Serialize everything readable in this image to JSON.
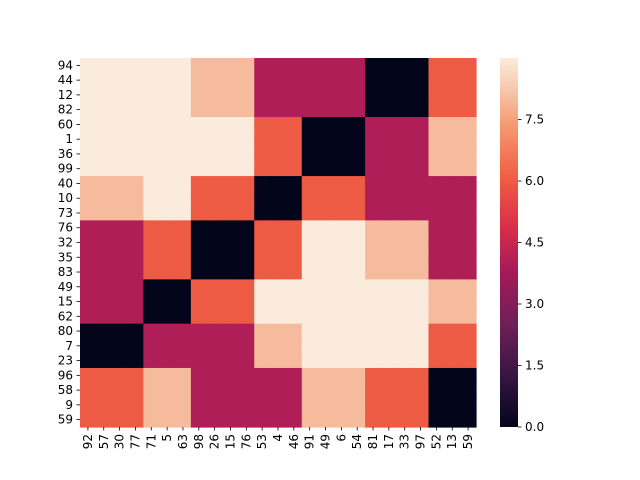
{
  "chart_data": {
    "type": "heatmap",
    "title": "",
    "xlabel": "",
    "ylabel": "",
    "row_labels": [
      "94",
      "44",
      "12",
      "82",
      "60",
      "1",
      "36",
      "99",
      "40",
      "10",
      "73",
      "76",
      "32",
      "35",
      "83",
      "49",
      "15",
      "62",
      "80",
      "7",
      "23",
      "96",
      "58",
      "9",
      "59"
    ],
    "col_labels": [
      "92",
      "57",
      "30",
      "77",
      "71",
      "5",
      "63",
      "98",
      "26",
      "15",
      "76",
      "53",
      "4",
      "46",
      "91",
      "49",
      "6",
      "54",
      "81",
      "17",
      "33",
      "97",
      "52",
      "13",
      "59"
    ],
    "cmap": "rocket",
    "vmin": 0,
    "vmax": 9,
    "colorbar_ticks": [
      "0.0",
      "1.5",
      "3.0",
      "4.5",
      "6.0",
      "7.5"
    ],
    "colorbar_tick_values": [
      0,
      1.5,
      3,
      4.5,
      6,
      7.5
    ],
    "values": [
      [
        9,
        9,
        9,
        9,
        9,
        9,
        9,
        8,
        8,
        8,
        8,
        4,
        4,
        4,
        4,
        4,
        4,
        4,
        0,
        0,
        0,
        0,
        6,
        6,
        6
      ],
      [
        9,
        9,
        9,
        9,
        9,
        9,
        9,
        8,
        8,
        8,
        8,
        4,
        4,
        4,
        4,
        4,
        4,
        4,
        0,
        0,
        0,
        0,
        6,
        6,
        6
      ],
      [
        9,
        9,
        9,
        9,
        9,
        9,
        9,
        8,
        8,
        8,
        8,
        4,
        4,
        4,
        4,
        4,
        4,
        4,
        0,
        0,
        0,
        0,
        6,
        6,
        6
      ],
      [
        9,
        9,
        9,
        9,
        9,
        9,
        9,
        8,
        8,
        8,
        8,
        4,
        4,
        4,
        4,
        4,
        4,
        4,
        0,
        0,
        0,
        0,
        6,
        6,
        6
      ],
      [
        9,
        9,
        9,
        9,
        9,
        9,
        9,
        9,
        9,
        9,
        9,
        6,
        6,
        6,
        0,
        0,
        0,
        0,
        4,
        4,
        4,
        4,
        8,
        8,
        8
      ],
      [
        9,
        9,
        9,
        9,
        9,
        9,
        9,
        9,
        9,
        9,
        9,
        6,
        6,
        6,
        0,
        0,
        0,
        0,
        4,
        4,
        4,
        4,
        8,
        8,
        8
      ],
      [
        9,
        9,
        9,
        9,
        9,
        9,
        9,
        9,
        9,
        9,
        9,
        6,
        6,
        6,
        0,
        0,
        0,
        0,
        4,
        4,
        4,
        4,
        8,
        8,
        8
      ],
      [
        9,
        9,
        9,
        9,
        9,
        9,
        9,
        9,
        9,
        9,
        9,
        6,
        6,
        6,
        0,
        0,
        0,
        0,
        4,
        4,
        4,
        4,
        8,
        8,
        8
      ],
      [
        8,
        8,
        8,
        8,
        9,
        9,
        9,
        6,
        6,
        6,
        6,
        0,
        0,
        0,
        6,
        6,
        6,
        6,
        4,
        4,
        4,
        4,
        4,
        4,
        4
      ],
      [
        8,
        8,
        8,
        8,
        9,
        9,
        9,
        6,
        6,
        6,
        6,
        0,
        0,
        0,
        6,
        6,
        6,
        6,
        4,
        4,
        4,
        4,
        4,
        4,
        4
      ],
      [
        8,
        8,
        8,
        8,
        9,
        9,
        9,
        6,
        6,
        6,
        6,
        0,
        0,
        0,
        6,
        6,
        6,
        6,
        4,
        4,
        4,
        4,
        4,
        4,
        4
      ],
      [
        4,
        4,
        4,
        4,
        6,
        6,
        6,
        0,
        0,
        0,
        0,
        6,
        6,
        6,
        9,
        9,
        9,
        9,
        8,
        8,
        8,
        8,
        4,
        4,
        4
      ],
      [
        4,
        4,
        4,
        4,
        6,
        6,
        6,
        0,
        0,
        0,
        0,
        6,
        6,
        6,
        9,
        9,
        9,
        9,
        8,
        8,
        8,
        8,
        4,
        4,
        4
      ],
      [
        4,
        4,
        4,
        4,
        6,
        6,
        6,
        0,
        0,
        0,
        0,
        6,
        6,
        6,
        9,
        9,
        9,
        9,
        8,
        8,
        8,
        8,
        4,
        4,
        4
      ],
      [
        4,
        4,
        4,
        4,
        6,
        6,
        6,
        0,
        0,
        0,
        0,
        6,
        6,
        6,
        9,
        9,
        9,
        9,
        8,
        8,
        8,
        8,
        4,
        4,
        4
      ],
      [
        4,
        4,
        4,
        4,
        0,
        0,
        0,
        6,
        6,
        6,
        6,
        9,
        9,
        9,
        9,
        9,
        9,
        9,
        9,
        9,
        9,
        9,
        8,
        8,
        8
      ],
      [
        4,
        4,
        4,
        4,
        0,
        0,
        0,
        6,
        6,
        6,
        6,
        9,
        9,
        9,
        9,
        9,
        9,
        9,
        9,
        9,
        9,
        9,
        8,
        8,
        8
      ],
      [
        4,
        4,
        4,
        4,
        0,
        0,
        0,
        6,
        6,
        6,
        6,
        9,
        9,
        9,
        9,
        9,
        9,
        9,
        9,
        9,
        9,
        9,
        8,
        8,
        8
      ],
      [
        0,
        0,
        0,
        0,
        4,
        4,
        4,
        4,
        4,
        4,
        4,
        8,
        8,
        8,
        9,
        9,
        9,
        9,
        9,
        9,
        9,
        9,
        6,
        6,
        6
      ],
      [
        0,
        0,
        0,
        0,
        4,
        4,
        4,
        4,
        4,
        4,
        4,
        8,
        8,
        8,
        9,
        9,
        9,
        9,
        9,
        9,
        9,
        9,
        6,
        6,
        6
      ],
      [
        0,
        0,
        0,
        0,
        4,
        4,
        4,
        4,
        4,
        4,
        4,
        8,
        8,
        8,
        9,
        9,
        9,
        9,
        9,
        9,
        9,
        9,
        6,
        6,
        6
      ],
      [
        6,
        6,
        6,
        6,
        8,
        8,
        8,
        4,
        4,
        4,
        4,
        4,
        4,
        4,
        8,
        8,
        8,
        8,
        6,
        6,
        6,
        6,
        0,
        0,
        0
      ],
      [
        6,
        6,
        6,
        6,
        8,
        8,
        8,
        4,
        4,
        4,
        4,
        4,
        4,
        4,
        8,
        8,
        8,
        8,
        6,
        6,
        6,
        6,
        0,
        0,
        0
      ],
      [
        6,
        6,
        6,
        6,
        8,
        8,
        8,
        4,
        4,
        4,
        4,
        4,
        4,
        4,
        8,
        8,
        8,
        8,
        6,
        6,
        6,
        6,
        0,
        0,
        0
      ],
      [
        6,
        6,
        6,
        6,
        8,
        8,
        8,
        4,
        4,
        4,
        4,
        4,
        4,
        4,
        8,
        8,
        8,
        8,
        6,
        6,
        6,
        6,
        0,
        0,
        0
      ]
    ]
  }
}
